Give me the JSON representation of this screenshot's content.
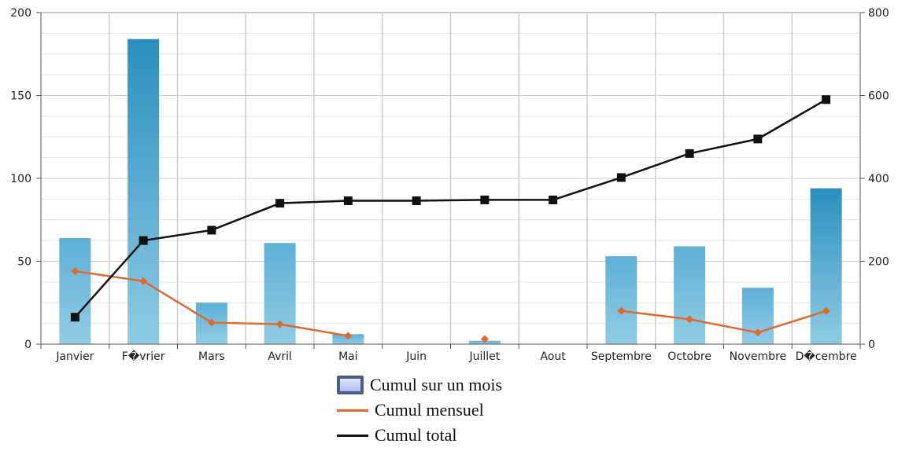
{
  "chart_data": {
    "type": "bar",
    "categories": [
      "Janvier",
      "F�vrier",
      "Mars",
      "Avril",
      "Mai",
      "Juin",
      "Juillet",
      "Aout",
      "Septembre",
      "Octobre",
      "Novembre",
      "D�cembre"
    ],
    "series": [
      {
        "name": "Cumul sur un mois",
        "type": "bar",
        "axis": "left",
        "color": "#6bb5d8",
        "values": [
          64,
          184,
          25,
          61,
          6,
          0,
          2,
          0,
          53,
          59,
          34,
          94
        ]
      },
      {
        "name": "Cumul mensuel",
        "type": "line",
        "axis": "left",
        "color": "#e06a2c",
        "marker": "diamond",
        "values": [
          44,
          38,
          13,
          12,
          5,
          null,
          3,
          null,
          20,
          15,
          7,
          20
        ]
      },
      {
        "name": "Cumul total",
        "type": "line",
        "axis": "right",
        "color": "#111111",
        "marker": "square",
        "values": [
          65,
          250,
          275,
          340,
          346,
          346,
          348,
          348,
          402,
          460,
          495,
          590
        ]
      }
    ],
    "y_left": {
      "min": 0,
      "max": 200,
      "ticks": [
        "0",
        "50",
        "100",
        "150",
        "200"
      ]
    },
    "y_right": {
      "min": 0,
      "max": 800,
      "ticks": [
        "0",
        "200",
        "400",
        "600",
        "800"
      ]
    },
    "grid": true,
    "legend_position": "bottom"
  }
}
